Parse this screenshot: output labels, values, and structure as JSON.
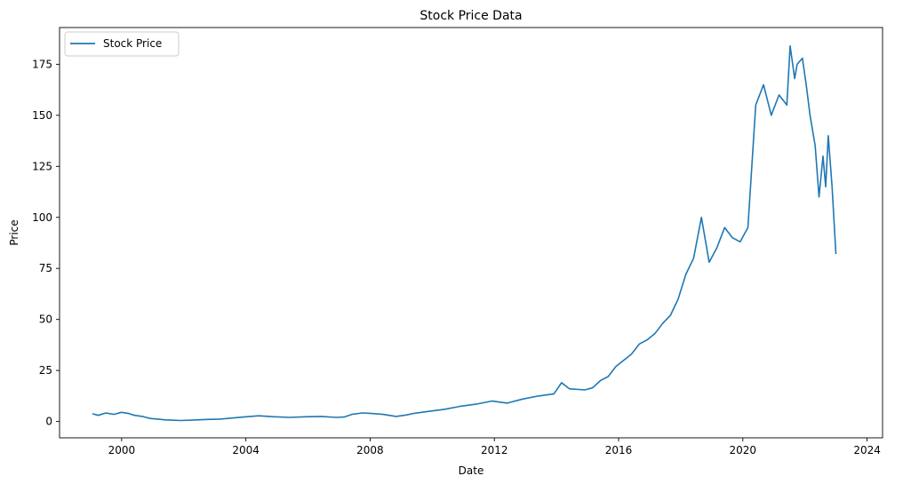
{
  "chart_data": {
    "type": "line",
    "title": "Stock Price Data",
    "xlabel": "Date",
    "ylabel": "Price",
    "x_axis": "date",
    "xlim": [
      "1998-01-01",
      "2024-07-01"
    ],
    "ylim": [
      -8,
      193
    ],
    "x_ticks": [
      {
        "date": "2000-01-01",
        "label": "2000"
      },
      {
        "date": "2004-01-01",
        "label": "2004"
      },
      {
        "date": "2008-01-01",
        "label": "2008"
      },
      {
        "date": "2012-01-01",
        "label": "2012"
      },
      {
        "date": "2016-01-01",
        "label": "2016"
      },
      {
        "date": "2020-01-01",
        "label": "2020"
      },
      {
        "date": "2024-01-01",
        "label": "2024"
      }
    ],
    "y_ticks": [
      0,
      25,
      50,
      75,
      100,
      125,
      150,
      175
    ],
    "grid": false,
    "legend": {
      "position": "top-left",
      "entries": [
        "Stock Price"
      ]
    },
    "colors": {
      "series": "#1f77b4",
      "axes": "#000000"
    },
    "series": [
      {
        "name": "Stock Price",
        "x": [
          "1999-01-22",
          "1999-04-01",
          "1999-07-01",
          "1999-10-01",
          "2000-01-01",
          "2000-03-15",
          "2000-06-01",
          "2000-09-01",
          "2000-12-01",
          "2001-03-01",
          "2001-06-01",
          "2001-09-01",
          "2001-12-01",
          "2002-06-01",
          "2002-10-01",
          "2003-03-01",
          "2003-06-01",
          "2003-12-01",
          "2004-06-01",
          "2004-12-01",
          "2005-06-01",
          "2005-12-01",
          "2006-06-01",
          "2006-12-01",
          "2007-03-01",
          "2007-06-01",
          "2007-10-01",
          "2008-01-01",
          "2008-06-01",
          "2008-11-01",
          "2009-03-01",
          "2009-06-01",
          "2009-12-01",
          "2010-06-01",
          "2010-12-01",
          "2011-06-01",
          "2011-12-01",
          "2012-06-01",
          "2012-12-01",
          "2013-06-01",
          "2013-12-01",
          "2014-03-01",
          "2014-06-01",
          "2014-12-01",
          "2015-03-01",
          "2015-06-01",
          "2015-09-01",
          "2015-12-01",
          "2016-03-01",
          "2016-06-01",
          "2016-09-01",
          "2016-12-01",
          "2017-03-01",
          "2017-06-01",
          "2017-09-01",
          "2017-12-01",
          "2018-03-01",
          "2018-06-01",
          "2018-09-01",
          "2018-12-01",
          "2019-03-01",
          "2019-06-01",
          "2019-09-01",
          "2019-12-01",
          "2020-03-01",
          "2020-06-01",
          "2020-09-01",
          "2020-12-01",
          "2021-03-01",
          "2021-06-01",
          "2021-07-10",
          "2021-09-01",
          "2021-10-01",
          "2021-12-01",
          "2022-01-15",
          "2022-03-01",
          "2022-05-01",
          "2022-06-15",
          "2022-08-01",
          "2022-09-01",
          "2022-10-01",
          "2022-11-15",
          "2022-12-30"
        ],
        "values": [
          3.8,
          3.0,
          4.2,
          3.5,
          4.5,
          4.0,
          3.0,
          2.5,
          1.5,
          1.2,
          0.8,
          0.6,
          0.5,
          0.8,
          1.0,
          1.2,
          1.5,
          2.2,
          2.8,
          2.3,
          2.0,
          2.3,
          2.5,
          2.0,
          2.2,
          3.5,
          4.2,
          4.0,
          3.5,
          2.5,
          3.2,
          4.0,
          5.0,
          6.0,
          7.5,
          8.5,
          10.0,
          9.0,
          11.0,
          12.5,
          13.5,
          19.0,
          16.0,
          15.5,
          16.5,
          20.0,
          22.0,
          27.0,
          30.0,
          33.0,
          38.0,
          40.0,
          43.0,
          48.0,
          52.0,
          60.0,
          72.0,
          80.0,
          100.0,
          78.0,
          85.0,
          95.0,
          90.0,
          88.0,
          95.0,
          155.0,
          165.0,
          150.0,
          160.0,
          155.0,
          184.0,
          168.0,
          175.0,
          178.0,
          165.0,
          150.0,
          135.0,
          110.0,
          130.0,
          115.0,
          140.0,
          115.0,
          82.0
        ]
      }
    ]
  }
}
